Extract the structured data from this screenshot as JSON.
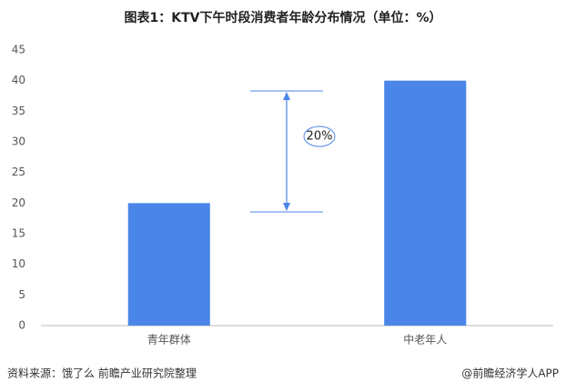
{
  "chart_data": {
    "type": "bar",
    "title": "图表1：KTV下午时段消费者年龄分布情况（单位：%）",
    "categories": [
      "青年群体",
      "中老年人"
    ],
    "values": [
      20,
      40
    ],
    "color": "#4a86e8",
    "ylim": [
      0,
      45
    ],
    "yticks": [
      0,
      5,
      10,
      15,
      20,
      25,
      30,
      35,
      40,
      45
    ],
    "grid": false,
    "annotation": "20%",
    "source": "资料来源：饿了么 前瞻产业研究院整理",
    "watermark": "@前瞻经济学人APP"
  }
}
